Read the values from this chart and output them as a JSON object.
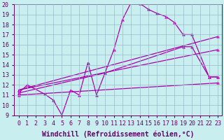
{
  "xlabel": "Windchill (Refroidissement éolien,°C)",
  "xlim": [
    0,
    23
  ],
  "ylim": [
    9,
    20
  ],
  "xticks": [
    0,
    1,
    2,
    3,
    4,
    5,
    6,
    7,
    8,
    9,
    10,
    11,
    12,
    13,
    14,
    15,
    16,
    17,
    18,
    19,
    20,
    21,
    22,
    23
  ],
  "yticks": [
    9,
    10,
    11,
    12,
    13,
    14,
    15,
    16,
    17,
    18,
    19,
    20
  ],
  "bg_color": "#c8eef0",
  "line_color": "#aa00aa",
  "grid_color": "#99bbcc",
  "line1_x": [
    0,
    1,
    3,
    4,
    5,
    6,
    7,
    8,
    9,
    11,
    12,
    13,
    14,
    15,
    16,
    17,
    18,
    19,
    20,
    22,
    23
  ],
  "line1_y": [
    11.2,
    12,
    11.1,
    10.5,
    9.0,
    11.5,
    11.0,
    14.2,
    11.0,
    15.5,
    18.5,
    20.2,
    20.1,
    19.5,
    19.1,
    18.8,
    18.2,
    17.0,
    17.0,
    12.8,
    12.8
  ],
  "line2_x": [
    0,
    10,
    19,
    20,
    22,
    23
  ],
  "line2_y": [
    11.2,
    13.2,
    15.8,
    15.8,
    12.8,
    12.8
  ],
  "line3_x": [
    0,
    23
  ],
  "line3_y": [
    11.5,
    16.8
  ],
  "line4_x": [
    0,
    23
  ],
  "line4_y": [
    11.5,
    15.5
  ],
  "line5_x": [
    0,
    23
  ],
  "line5_y": [
    11.0,
    12.2
  ],
  "marker": "^",
  "markersize": 2.5,
  "linewidth": 0.9,
  "font_color": "#660066",
  "xlabel_fontsize": 7,
  "tick_fontsize": 6
}
